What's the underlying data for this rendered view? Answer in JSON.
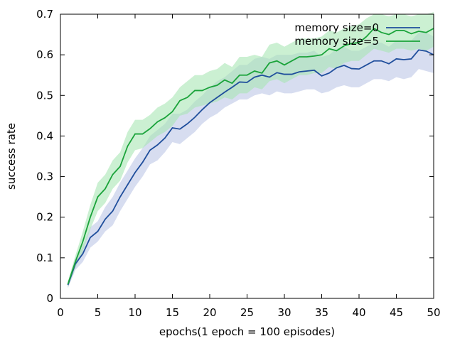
{
  "chart_data": {
    "type": "line",
    "title": "",
    "xlabel": "epochs(1 epoch = 100 episodes)",
    "ylabel": "success rate",
    "xlim": [
      0,
      50
    ],
    "ylim": [
      0,
      0.7
    ],
    "xticks": [
      0,
      5,
      10,
      15,
      20,
      25,
      30,
      35,
      40,
      45,
      50
    ],
    "xtick_labels": [
      "0",
      "5",
      "10",
      "15",
      "20",
      "25",
      "30",
      "35",
      "40",
      "45",
      "50"
    ],
    "yticks": [
      0,
      0.1,
      0.2,
      0.3,
      0.4,
      0.5,
      0.6,
      0.7
    ],
    "ytick_labels": [
      "0",
      "0.1",
      "0.2",
      "0.3",
      "0.4",
      "0.5",
      "0.6",
      "0.7"
    ],
    "grid": false,
    "legend_position": "top-right",
    "series": [
      {
        "name": "memory size=0",
        "color": "#1f4e9c",
        "band_color": "#bcc7e6",
        "x": [
          1,
          2,
          3,
          4,
          5,
          6,
          7,
          8,
          9,
          10,
          11,
          12,
          13,
          14,
          15,
          16,
          17,
          18,
          19,
          20,
          21,
          22,
          23,
          24,
          25,
          26,
          27,
          28,
          29,
          30,
          31,
          32,
          33,
          34,
          35,
          36,
          37,
          38,
          39,
          40,
          41,
          42,
          43,
          44,
          45,
          46,
          47,
          48,
          49,
          50
        ],
        "values": [
          0.033,
          0.085,
          0.11,
          0.15,
          0.165,
          0.195,
          0.215,
          0.25,
          0.28,
          0.31,
          0.335,
          0.365,
          0.378,
          0.395,
          0.42,
          0.417,
          0.43,
          0.446,
          0.465,
          0.482,
          0.495,
          0.508,
          0.52,
          0.533,
          0.532,
          0.545,
          0.55,
          0.545,
          0.556,
          0.552,
          0.552,
          0.558,
          0.56,
          0.562,
          0.548,
          0.555,
          0.568,
          0.574,
          0.566,
          0.565,
          0.575,
          0.585,
          0.585,
          0.578,
          0.59,
          0.588,
          0.59,
          0.612,
          0.609,
          0.6
        ],
        "lower": [
          0.025,
          0.07,
          0.09,
          0.125,
          0.14,
          0.165,
          0.18,
          0.215,
          0.245,
          0.275,
          0.3,
          0.33,
          0.34,
          0.36,
          0.385,
          0.38,
          0.395,
          0.41,
          0.43,
          0.445,
          0.455,
          0.47,
          0.48,
          0.49,
          0.49,
          0.5,
          0.505,
          0.5,
          0.51,
          0.505,
          0.505,
          0.51,
          0.515,
          0.515,
          0.505,
          0.51,
          0.52,
          0.525,
          0.52,
          0.52,
          0.53,
          0.54,
          0.54,
          0.535,
          0.545,
          0.54,
          0.545,
          0.565,
          0.56,
          0.555
        ],
        "upper": [
          0.04,
          0.1,
          0.13,
          0.175,
          0.19,
          0.225,
          0.25,
          0.285,
          0.315,
          0.345,
          0.37,
          0.4,
          0.415,
          0.43,
          0.455,
          0.455,
          0.465,
          0.485,
          0.5,
          0.52,
          0.535,
          0.545,
          0.56,
          0.575,
          0.575,
          0.59,
          0.595,
          0.59,
          0.6,
          0.6,
          0.6,
          0.605,
          0.605,
          0.61,
          0.595,
          0.6,
          0.615,
          0.62,
          0.61,
          0.61,
          0.62,
          0.63,
          0.63,
          0.62,
          0.635,
          0.635,
          0.635,
          0.655,
          0.655,
          0.645
        ]
      },
      {
        "name": "memory size=5",
        "color": "#1aa33a",
        "band_color": "#a8e6b4",
        "x": [
          1,
          2,
          3,
          4,
          5,
          6,
          7,
          8,
          9,
          10,
          11,
          12,
          13,
          14,
          15,
          16,
          17,
          18,
          19,
          20,
          21,
          22,
          23,
          24,
          25,
          26,
          27,
          28,
          29,
          30,
          31,
          32,
          33,
          34,
          35,
          36,
          37,
          38,
          39,
          40,
          41,
          42,
          43,
          44,
          45,
          46,
          47,
          48,
          49,
          50
        ],
        "values": [
          0.035,
          0.09,
          0.14,
          0.2,
          0.25,
          0.27,
          0.305,
          0.325,
          0.375,
          0.405,
          0.405,
          0.418,
          0.435,
          0.445,
          0.46,
          0.487,
          0.495,
          0.512,
          0.512,
          0.52,
          0.525,
          0.538,
          0.53,
          0.55,
          0.55,
          0.56,
          0.555,
          0.58,
          0.585,
          0.575,
          0.585,
          0.595,
          0.595,
          0.597,
          0.6,
          0.615,
          0.61,
          0.622,
          0.628,
          0.63,
          0.645,
          0.665,
          0.655,
          0.65,
          0.66,
          0.66,
          0.652,
          0.658,
          0.655,
          0.665
        ],
        "lower": [
          0.028,
          0.075,
          0.115,
          0.17,
          0.215,
          0.235,
          0.27,
          0.29,
          0.335,
          0.365,
          0.37,
          0.385,
          0.4,
          0.41,
          0.425,
          0.45,
          0.455,
          0.47,
          0.475,
          0.48,
          0.485,
          0.495,
          0.49,
          0.505,
          0.505,
          0.52,
          0.515,
          0.535,
          0.54,
          0.53,
          0.54,
          0.55,
          0.55,
          0.555,
          0.555,
          0.57,
          0.565,
          0.58,
          0.585,
          0.585,
          0.6,
          0.615,
          0.61,
          0.605,
          0.615,
          0.615,
          0.61,
          0.615,
          0.61,
          0.62
        ],
        "upper": [
          0.042,
          0.105,
          0.165,
          0.23,
          0.285,
          0.305,
          0.34,
          0.36,
          0.41,
          0.44,
          0.44,
          0.452,
          0.47,
          0.48,
          0.495,
          0.52,
          0.535,
          0.55,
          0.55,
          0.56,
          0.565,
          0.58,
          0.57,
          0.595,
          0.595,
          0.6,
          0.595,
          0.625,
          0.63,
          0.62,
          0.63,
          0.64,
          0.64,
          0.64,
          0.645,
          0.66,
          0.655,
          0.665,
          0.67,
          0.675,
          0.69,
          0.7,
          0.7,
          0.695,
          0.7,
          0.7,
          0.695,
          0.7,
          0.7,
          0.705
        ]
      }
    ]
  }
}
